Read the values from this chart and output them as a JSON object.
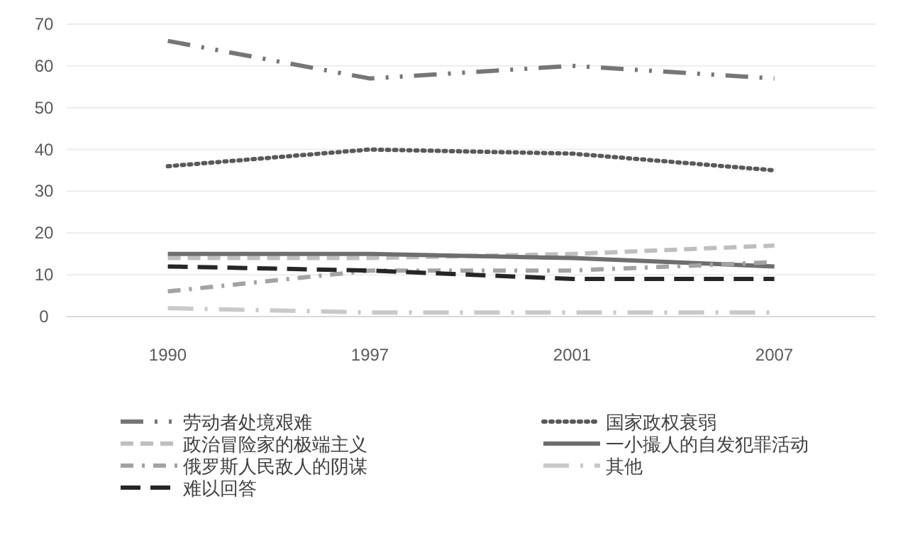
{
  "chart_data": {
    "type": "line",
    "categories": [
      "1990",
      "1997",
      "2001",
      "2007"
    ],
    "ylim": [
      0,
      70
    ],
    "yticks": [
      0,
      10,
      20,
      30,
      40,
      50,
      60,
      70
    ],
    "grid": "y",
    "legend": "bottom",
    "series": [
      {
        "name": "劳动者处境艰难",
        "color": "#767676",
        "line_style": "dashdotdot",
        "values": [
          66,
          57,
          60,
          57
        ]
      },
      {
        "name": "国家政权衰弱",
        "color": "#595959",
        "line_style": "dotted",
        "values": [
          36,
          40,
          39,
          35
        ]
      },
      {
        "name": "政治冒险家的极端主义",
        "color": "#bfbfbf",
        "line_style": "dashed",
        "values": [
          14,
          14,
          15,
          17
        ]
      },
      {
        "name": "一小撮人的自发犯罪活动",
        "color": "#6e6e6e",
        "line_style": "solid",
        "values": [
          15,
          15,
          14,
          12
        ]
      },
      {
        "name": "俄罗斯人民敌人的阴谋",
        "color": "#a3a3a3",
        "line_style": "dashdot",
        "values": [
          6,
          11,
          11,
          13
        ]
      },
      {
        "name": "其他",
        "color": "#c9c9c9",
        "line_style": "longdashdot",
        "values": [
          2,
          1,
          1,
          1
        ]
      },
      {
        "name": "难以回答",
        "color": "#262626",
        "line_style": "longdash",
        "values": [
          12,
          11,
          9,
          9
        ]
      }
    ]
  }
}
